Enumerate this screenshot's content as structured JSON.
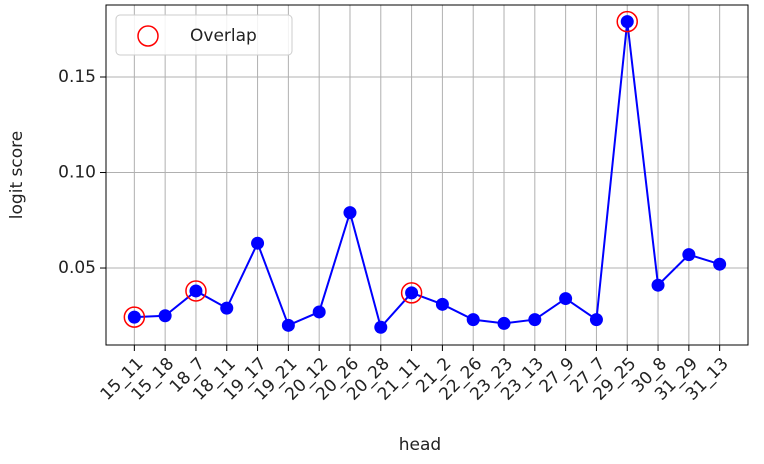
{
  "chart_data": {
    "type": "line",
    "xlabel": "head",
    "ylabel": "logit score",
    "categories": [
      "15_11",
      "15_18",
      "18_7",
      "18_11",
      "19_17",
      "19_21",
      "20_12",
      "20_26",
      "20_28",
      "21_11",
      "21_2",
      "22_26",
      "23_23",
      "23_13",
      "27_9",
      "27_7",
      "29_25",
      "30_8",
      "31_29",
      "31_13"
    ],
    "series": [
      {
        "color": "#0000ff",
        "values": [
          0.0243,
          0.025,
          0.038,
          0.029,
          0.063,
          0.02,
          0.027,
          0.079,
          0.019,
          0.037,
          0.031,
          0.023,
          0.021,
          0.023,
          0.034,
          0.023,
          0.179,
          0.041,
          0.057,
          0.052
        ]
      }
    ],
    "overlap": {
      "name": "Overlap",
      "color": "#ff0000",
      "categories": [
        "15_11",
        "18_7",
        "21_11",
        "29_25"
      ],
      "values": [
        0.0243,
        0.038,
        0.037,
        0.179
      ]
    },
    "ylim": [
      0.0097,
      0.1877
    ],
    "yticks": [
      {
        "value": 0.05,
        "label": "0.05"
      },
      {
        "value": 0.1,
        "label": "0.10"
      },
      {
        "value": 0.15,
        "label": "0.15"
      }
    ],
    "grid": true,
    "legend": "upper left"
  }
}
